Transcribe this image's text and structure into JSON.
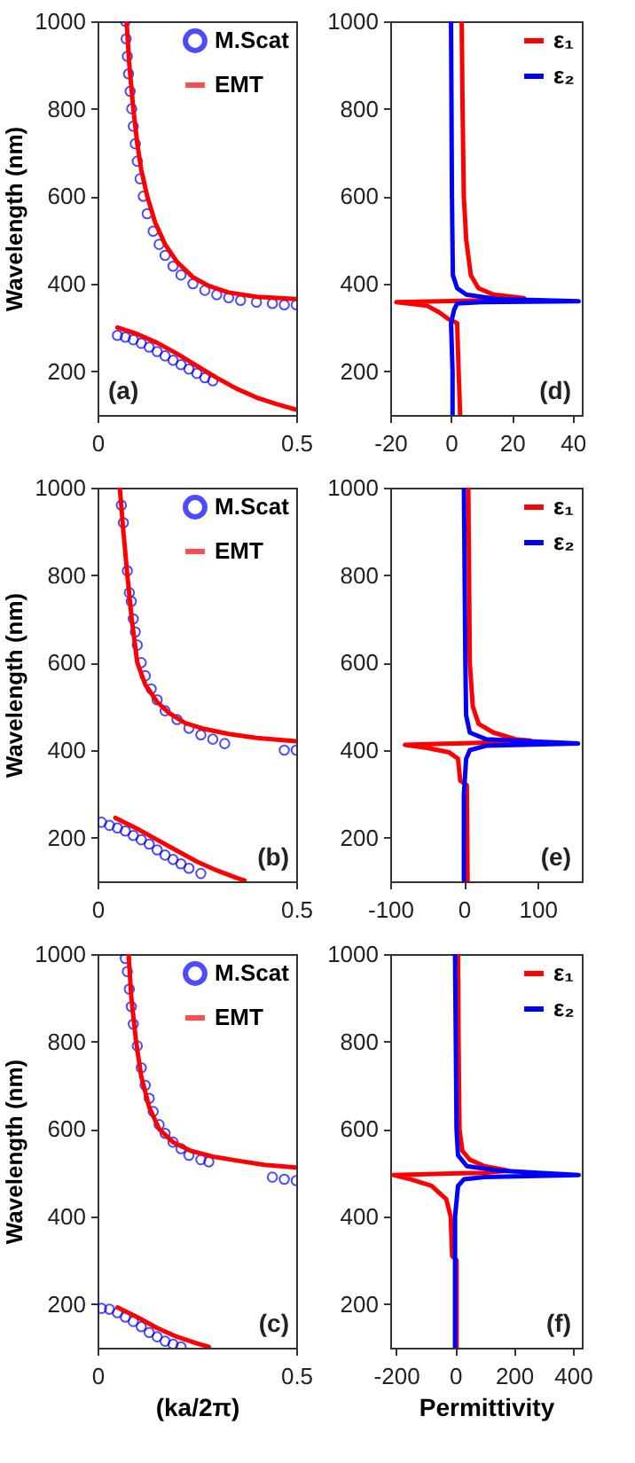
{
  "chart_data": [
    {
      "type": "line",
      "ylabel": "Wavelength (nm)",
      "xlim": [
        0,
        0.5
      ],
      "xticks": [
        0,
        0.5
      ],
      "ylim": [
        100,
        1000
      ],
      "yticks": [
        200,
        400,
        600,
        800,
        1000
      ],
      "legend": "top right",
      "annotations": [
        "(a)"
      ],
      "series": [
        {
          "name": "M.Scat",
          "type": "scatter",
          "marker": "circle",
          "color": "#0000ff",
          "x": [
            0.07,
            0.072,
            0.075,
            0.078,
            0.082,
            0.086,
            0.09,
            0.095,
            0.1,
            0.107,
            0.115,
            0.125,
            0.14,
            0.155,
            0.17,
            0.19,
            0.21,
            0.24,
            0.27,
            0.3,
            0.33,
            0.36,
            0.4,
            0.44,
            0.47,
            0.5,
            0.05,
            0.07,
            0.09,
            0.11,
            0.13,
            0.15,
            0.17,
            0.19,
            0.21,
            0.23,
            0.25,
            0.27,
            0.29
          ],
          "values": [
            1000,
            960,
            920,
            880,
            840,
            800,
            760,
            720,
            680,
            640,
            600,
            560,
            520,
            490,
            465,
            440,
            420,
            400,
            385,
            375,
            368,
            362,
            358,
            355,
            352,
            352,
            282,
            278,
            272,
            264,
            255,
            245,
            235,
            225,
            215,
            205,
            195,
            185,
            178
          ]
        },
        {
          "name": "EMT",
          "color": "#ff0000",
          "x": [
            0.073,
            0.08,
            0.09,
            0.1,
            0.11,
            0.125,
            0.145,
            0.17,
            0.2,
            0.24,
            0.28,
            0.33,
            0.4,
            0.5,
            null,
            0.05,
            0.1,
            0.15,
            0.2,
            0.25,
            0.3,
            0.35,
            0.4,
            0.45,
            0.5
          ],
          "values": [
            1000,
            900,
            800,
            720,
            660,
            600,
            540,
            490,
            450,
            415,
            395,
            380,
            370,
            365,
            null,
            300,
            285,
            265,
            240,
            212,
            185,
            160,
            140,
            125,
            112
          ]
        }
      ]
    },
    {
      "type": "line",
      "xlim": [
        -20,
        43
      ],
      "xticks": [
        -20,
        0,
        20,
        40
      ],
      "ylim": [
        100,
        1000
      ],
      "yticks": [
        200,
        400,
        600,
        800,
        1000
      ],
      "legend": "top right",
      "annotations": [
        "(d)"
      ],
      "series": [
        {
          "name": "ε₁",
          "color": "#ff0000",
          "x": [
            3.5,
            3.8,
            4.2,
            5,
            6.5,
            9,
            14,
            24,
            10,
            -18,
            -8,
            -4,
            -1,
            2,
            2.5,
            3
          ],
          "values": [
            1000,
            800,
            600,
            500,
            420,
            390,
            375,
            367,
            362,
            358,
            350,
            335,
            320,
            310,
            200,
            100
          ]
        },
        {
          "name": "ε₂",
          "color": "#0000ff",
          "x": [
            0,
            0.3,
            0.6,
            2,
            5,
            15,
            42,
            10,
            2,
            1,
            0,
            0.5,
            0.5
          ],
          "values": [
            1000,
            600,
            420,
            390,
            375,
            365,
            360,
            358,
            355,
            340,
            310,
            200,
            100
          ]
        }
      ]
    },
    {
      "type": "line",
      "ylabel": "Wavelength (nm)",
      "xlim": [
        0,
        0.5
      ],
      "xticks": [
        0,
        0.5
      ],
      "ylim": [
        100,
        1000
      ],
      "yticks": [
        200,
        400,
        600,
        800,
        1000
      ],
      "legend": "top right",
      "annotations": [
        "(b)"
      ],
      "series": [
        {
          "name": "M.Scat",
          "type": "scatter",
          "marker": "circle",
          "color": "#0000ff",
          "x": [
            0.06,
            0.065,
            0.075,
            0.08,
            0.085,
            0.09,
            0.095,
            0.1,
            0.11,
            0.12,
            0.135,
            0.15,
            0.17,
            0.2,
            0.23,
            0.26,
            0.29,
            0.32,
            0.47,
            0.5,
            0.01,
            0.03,
            0.05,
            0.07,
            0.09,
            0.11,
            0.13,
            0.15,
            0.17,
            0.19,
            0.21,
            0.23,
            0.26
          ],
          "values": [
            960,
            920,
            810,
            760,
            740,
            700,
            670,
            640,
            600,
            570,
            540,
            515,
            490,
            470,
            450,
            435,
            425,
            415,
            400,
            400,
            235,
            228,
            222,
            215,
            205,
            195,
            185,
            172,
            160,
            150,
            140,
            130,
            118
          ]
        },
        {
          "name": "EMT",
          "color": "#ff0000",
          "x": [
            0.056,
            0.065,
            0.075,
            0.086,
            0.1,
            0.12,
            0.15,
            0.18,
            0.22,
            0.27,
            0.33,
            0.4,
            0.5,
            null,
            0.045,
            0.1,
            0.15,
            0.2,
            0.25,
            0.3,
            0.35,
            0.37
          ],
          "values": [
            1000,
            900,
            800,
            700,
            600,
            550,
            510,
            485,
            462,
            448,
            437,
            428,
            420,
            null,
            245,
            220,
            195,
            170,
            145,
            125,
            108,
            102
          ]
        }
      ]
    },
    {
      "type": "line",
      "xlim": [
        -100,
        160
      ],
      "xticks": [
        -100,
        0,
        100
      ],
      "ylim": [
        100,
        1000
      ],
      "yticks": [
        200,
        400,
        600,
        800,
        1000
      ],
      "legend": "top right",
      "annotations": [
        "(e)"
      ],
      "series": [
        {
          "name": "ε₁",
          "color": "#ff0000",
          "x": [
            6,
            7,
            8,
            12,
            20,
            40,
            70,
            90,
            50,
            -80,
            -50,
            -20,
            -8,
            -5,
            4,
            5
          ],
          "values": [
            1000,
            800,
            600,
            500,
            460,
            440,
            425,
            422,
            418,
            412,
            405,
            395,
            380,
            330,
            320,
            100
          ]
        },
        {
          "name": "ε₂",
          "color": "#0000ff",
          "x": [
            0,
            2,
            3,
            8,
            30,
            155,
            30,
            8,
            3,
            0,
            0
          ],
          "values": [
            1000,
            600,
            480,
            440,
            425,
            415,
            410,
            400,
            380,
            300,
            100
          ]
        }
      ]
    },
    {
      "type": "line",
      "ylabel": "Wavelength (nm)",
      "xlabel": "(ka/2π)",
      "xlim": [
        0,
        0.5
      ],
      "xticks": [
        0,
        0.5
      ],
      "ylim": [
        100,
        1000
      ],
      "yticks": [
        200,
        400,
        600,
        800,
        1000
      ],
      "legend": "top right",
      "annotations": [
        "(c)"
      ],
      "series": [
        {
          "name": "M.Scat",
          "type": "scatter",
          "marker": "circle",
          "color": "#0000ff",
          "x": [
            0.07,
            0.075,
            0.08,
            0.085,
            0.09,
            0.1,
            0.11,
            0.12,
            0.13,
            0.14,
            0.155,
            0.17,
            0.19,
            0.21,
            0.23,
            0.26,
            0.28,
            0.44,
            0.47,
            0.5,
            0.01,
            0.03,
            0.05,
            0.07,
            0.09,
            0.11,
            0.13,
            0.15,
            0.17,
            0.19,
            0.21
          ],
          "values": [
            990,
            960,
            920,
            880,
            840,
            790,
            740,
            700,
            670,
            640,
            610,
            590,
            570,
            555,
            540,
            530,
            525,
            490,
            485,
            482,
            190,
            188,
            180,
            170,
            160,
            148,
            135,
            125,
            115,
            108,
            102
          ]
        },
        {
          "name": "EMT",
          "color": "#ff0000",
          "x": [
            0.078,
            0.085,
            0.097,
            0.11,
            0.13,
            0.155,
            0.19,
            0.235,
            0.29,
            0.35,
            0.42,
            0.5,
            null,
            0.05,
            0.1,
            0.15,
            0.2,
            0.25,
            0.28
          ],
          "values": [
            1000,
            900,
            800,
            720,
            650,
            600,
            570,
            550,
            537,
            528,
            518,
            512,
            null,
            192,
            170,
            145,
            125,
            110,
            102
          ]
        }
      ]
    },
    {
      "type": "line",
      "xlabel": "Permittivity",
      "xlim": [
        -220,
        430
      ],
      "xticks": [
        -200,
        0,
        200,
        400
      ],
      "ylim": [
        100,
        1000
      ],
      "yticks": [
        200,
        400,
        600,
        800,
        1000
      ],
      "legend": "top right",
      "annotations": [
        "(f)"
      ],
      "series": [
        {
          "name": "ε₁",
          "color": "#ff0000",
          "x": [
            10,
            12,
            15,
            25,
            50,
            100,
            180,
            100,
            -210,
            -150,
            -80,
            -30,
            -15,
            -10,
            5,
            5
          ],
          "values": [
            1000,
            800,
            600,
            550,
            530,
            515,
            505,
            500,
            495,
            485,
            470,
            440,
            400,
            310,
            300,
            100
          ]
        },
        {
          "name": "ε₂",
          "color": "#0000ff",
          "x": [
            0,
            5,
            10,
            40,
            150,
            420,
            100,
            30,
            10,
            0,
            0
          ],
          "values": [
            1000,
            600,
            540,
            515,
            505,
            495,
            490,
            485,
            470,
            400,
            100
          ]
        }
      ]
    }
  ]
}
